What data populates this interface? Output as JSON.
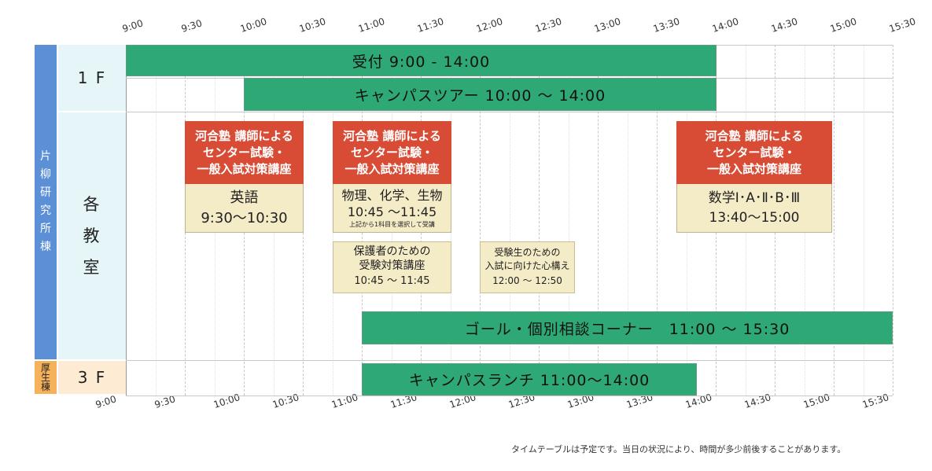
{
  "time_labels": [
    "9:00",
    "9:30",
    "10:00",
    "10:30",
    "11:00",
    "11:30",
    "12:00",
    "12:30",
    "13:00",
    "13:30",
    "14:00",
    "14:30",
    "15:00",
    "15:30"
  ],
  "buildings": {
    "katayanagi": [
      "片",
      "柳",
      "研",
      "究",
      "所",
      "棟"
    ],
    "kosei": [
      "厚",
      "生",
      "棟"
    ]
  },
  "floors": {
    "f1": "1 F",
    "classroom": [
      "各",
      "教",
      "室"
    ],
    "f3": "3 F"
  },
  "events": {
    "reception": "受付 9:00 - 14:00",
    "campus_tour": "キャンパスツアー 10:00 ～ 14:00",
    "goal_consult": "ゴール・個別相談コーナー　11:00 ～ 15:30",
    "campus_lunch": "キャンパスランチ  11:00～14:00"
  },
  "seminar_header": [
    "河合塾 講師による",
    "センター試験・",
    "一般入試対策講座"
  ],
  "seminars": {
    "english": {
      "subject": "英語",
      "time": "9:30～10:30"
    },
    "science": {
      "subject": "物理、化学、生物",
      "time": "10:45 ～11:45",
      "note": "上記から1科目を選択して受講"
    },
    "math": {
      "subject": "数学Ⅰ･A･Ⅱ･B･Ⅲ",
      "time": "13:40～15:00"
    }
  },
  "guardian": {
    "line1": "保護者のための",
    "line2": "受験対策講座",
    "time": "10:45 ～ 11:45"
  },
  "student": {
    "line1": "受験生のための",
    "line2": "入試に向けた心構え",
    "time": "12:00 ～ 12:50"
  },
  "footnote": "タイムテーブルは予定です。当日の状況により、時間が多少前後することがあります。",
  "colors": {
    "green": "#2ea874",
    "red": "#d84c36",
    "cream": "#f4ebc7",
    "blue": "#5b8fd6",
    "orange": "#f6b25b",
    "floor_bg1": "#e6f6f8",
    "floor_bg3": "#fdebd3"
  }
}
